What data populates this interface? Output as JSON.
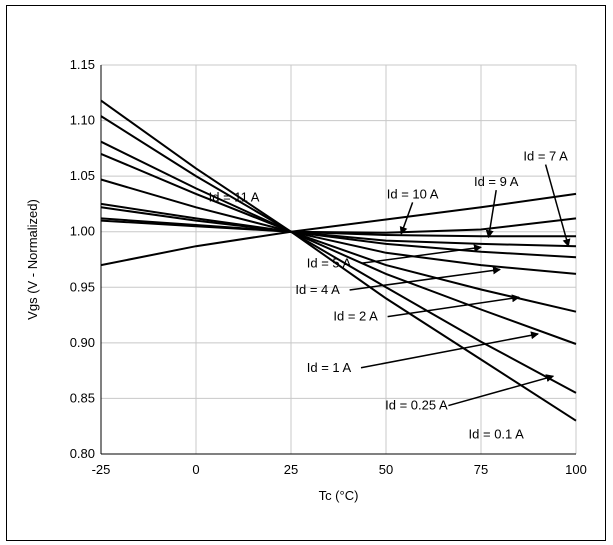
{
  "chart_data": {
    "type": "line",
    "title": "",
    "xlabel": "Tc (°C)",
    "ylabel": "Vgs (V - Normalized)",
    "xlim": [
      -25,
      100
    ],
    "ylim": [
      0.8,
      1.15
    ],
    "x_ticks": [
      -25,
      0,
      25,
      50,
      75,
      100
    ],
    "x_tick_labels": [
      "-25",
      "0",
      "25",
      "50",
      "75",
      "100"
    ],
    "y_ticks": [
      0.8,
      0.85,
      0.9,
      0.95,
      1.0,
      1.05,
      1.1,
      1.15
    ],
    "y_tick_labels": [
      "0.80",
      "0.85",
      "0.90",
      "0.95",
      "1.00",
      "1.05",
      "1.10",
      "1.15"
    ],
    "grid": true,
    "legend": "none",
    "line_color": "#000000",
    "x": [
      -25,
      0,
      25,
      50,
      75,
      100
    ],
    "series": [
      {
        "name": "Id = 0.1 A",
        "values": [
          1.118,
          1.057,
          1.0,
          0.94,
          0.885,
          0.83
        ]
      },
      {
        "name": "Id = 0.25 A",
        "values": [
          1.104,
          1.05,
          1.0,
          0.95,
          0.901,
          0.855
        ]
      },
      {
        "name": "Id = 1 A",
        "values": [
          1.081,
          1.039,
          1.0,
          0.962,
          0.93,
          0.899
        ]
      },
      {
        "name": "Id = 2 A",
        "values": [
          1.07,
          1.034,
          1.0,
          0.97,
          0.948,
          0.928
        ]
      },
      {
        "name": "Id = 4 A",
        "values": [
          1.047,
          1.022,
          1.0,
          0.981,
          0.97,
          0.962
        ]
      },
      {
        "name": "Id = 5 A",
        "values": [
          1.025,
          1.012,
          1.0,
          0.989,
          0.982,
          0.977
        ]
      },
      {
        "name": "Id = 7 A",
        "values": [
          1.022,
          1.01,
          1.0,
          0.992,
          0.989,
          0.987
        ]
      },
      {
        "name": "Id = 9 A",
        "values": [
          1.012,
          1.006,
          1.0,
          0.997,
          0.996,
          0.996
        ]
      },
      {
        "name": "Id = 10 A",
        "values": [
          1.01,
          1.005,
          1.0,
          0.999,
          1.002,
          1.012
        ]
      },
      {
        "name": "Id = 11 A",
        "values": [
          0.97,
          0.987,
          1.0,
          1.011,
          1.022,
          1.034
        ]
      }
    ],
    "annotations": [
      {
        "text": "Id = 11 A",
        "label_at": [
          10,
          1.027
        ],
        "arrow_to": null
      },
      {
        "text": "Id = 10 A",
        "label_at": [
          57,
          1.03
        ],
        "arrow_to": [
          54,
          0.998
        ]
      },
      {
        "text": "Id = 9 A",
        "label_at": [
          79,
          1.041
        ],
        "arrow_to": [
          77,
          0.995
        ]
      },
      {
        "text": "Id = 7 A",
        "label_at": [
          92,
          1.064
        ],
        "arrow_to": [
          98,
          0.987
        ]
      },
      {
        "text": "Id = 5 A",
        "label_at": [
          35,
          0.968
        ],
        "arrow_to": [
          75,
          0.986
        ]
      },
      {
        "text": "Id = 4 A",
        "label_at": [
          32,
          0.944
        ],
        "arrow_to": [
          80,
          0.966
        ]
      },
      {
        "text": "Id = 2 A",
        "label_at": [
          42,
          0.92
        ],
        "arrow_to": [
          85,
          0.941
        ]
      },
      {
        "text": "Id = 1 A",
        "label_at": [
          35,
          0.874
        ],
        "arrow_to": [
          90,
          0.908
        ]
      },
      {
        "text": "Id = 0.25 A",
        "label_at": [
          58,
          0.84
        ],
        "arrow_to": [
          94,
          0.87
        ]
      },
      {
        "text": "Id = 0.1 A",
        "label_at": [
          79,
          0.814
        ],
        "arrow_to": null
      }
    ]
  }
}
